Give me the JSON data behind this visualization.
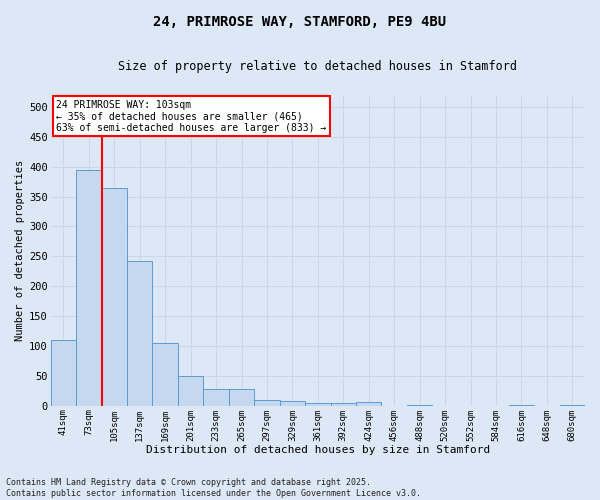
{
  "title_line1": "24, PRIMROSE WAY, STAMFORD, PE9 4BU",
  "title_line2": "Size of property relative to detached houses in Stamford",
  "xlabel": "Distribution of detached houses by size in Stamford",
  "ylabel": "Number of detached properties",
  "categories": [
    "41sqm",
    "73sqm",
    "105sqm",
    "137sqm",
    "169sqm",
    "201sqm",
    "233sqm",
    "265sqm",
    "297sqm",
    "329sqm",
    "361sqm",
    "392sqm",
    "424sqm",
    "456sqm",
    "488sqm",
    "520sqm",
    "552sqm",
    "584sqm",
    "616sqm",
    "648sqm",
    "680sqm"
  ],
  "values": [
    110,
    395,
    365,
    242,
    105,
    50,
    28,
    28,
    10,
    8,
    5,
    5,
    7,
    0,
    2,
    0,
    0,
    0,
    2,
    0,
    2
  ],
  "bar_color": "#c5d8f0",
  "bar_edge_color": "#5b9bd5",
  "red_line_x": 1.5,
  "annotation_text": "24 PRIMROSE WAY: 103sqm\n← 35% of detached houses are smaller (465)\n63% of semi-detached houses are larger (833) →",
  "annotation_box_color": "white",
  "annotation_box_edge_color": "red",
  "grid_color": "#ccd6e8",
  "plot_bg_color": "#dce8f5",
  "fig_bg_color": "#dce8f5",
  "footer_line1": "Contains HM Land Registry data © Crown copyright and database right 2025.",
  "footer_line2": "Contains public sector information licensed under the Open Government Licence v3.0.",
  "ylim": [
    0,
    520
  ],
  "yticks": [
    0,
    50,
    100,
    150,
    200,
    250,
    300,
    350,
    400,
    450,
    500
  ]
}
